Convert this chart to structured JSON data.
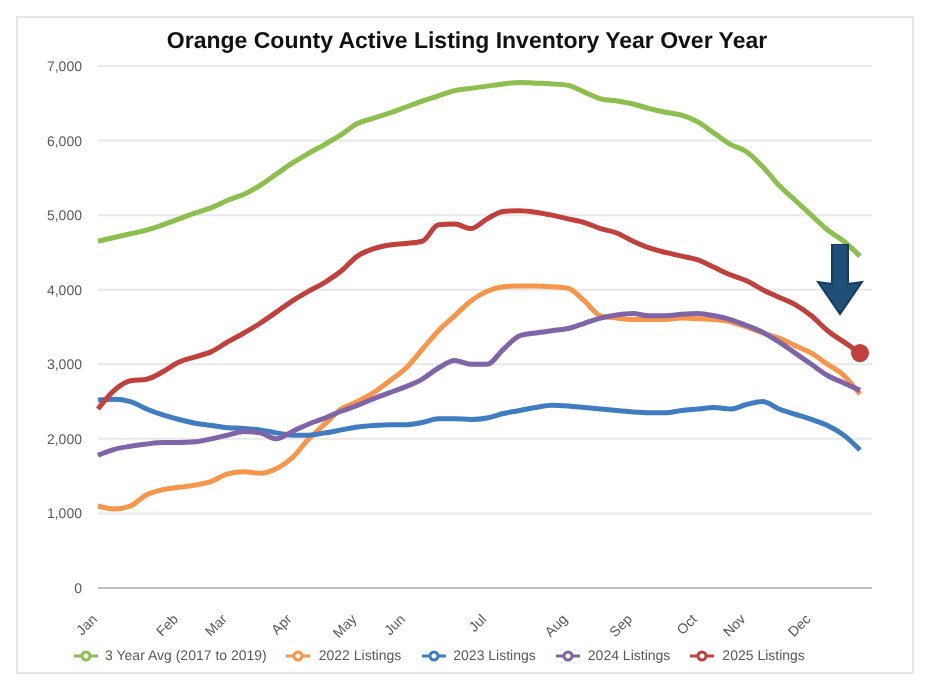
{
  "chart_data": {
    "type": "line",
    "title": "Orange County Active Listing Inventory Year Over Year",
    "categories": [
      "Jan",
      null,
      null,
      null,
      null,
      "Feb",
      null,
      null,
      "Mar",
      null,
      null,
      null,
      "Apr",
      null,
      null,
      null,
      "May",
      null,
      null,
      "Jun",
      null,
      null,
      null,
      null,
      "Jul",
      null,
      null,
      null,
      null,
      "Aug",
      null,
      null,
      null,
      "Sep",
      null,
      null,
      null,
      "Oct",
      null,
      null,
      "Nov",
      null,
      null,
      null,
      "Dec",
      null,
      null,
      null
    ],
    "series": [
      {
        "name": "3 Year Avg (2017 to 2019)",
        "color": "#8cbf4d",
        "values": [
          4650,
          4700,
          4750,
          4800,
          4870,
          4950,
          5030,
          5100,
          5200,
          5280,
          5400,
          5550,
          5700,
          5830,
          5950,
          6080,
          6230,
          6300,
          6370,
          6450,
          6530,
          6600,
          6670,
          6700,
          6730,
          6760,
          6780,
          6770,
          6760,
          6740,
          6650,
          6560,
          6530,
          6490,
          6430,
          6380,
          6340,
          6250,
          6100,
          5950,
          5850,
          5650,
          5400,
          5200,
          5000,
          4800,
          4650,
          4450
        ]
      },
      {
        "name": "2022 Listings",
        "color": "#f7964a",
        "values": [
          1100,
          1060,
          1100,
          1250,
          1320,
          1350,
          1380,
          1430,
          1530,
          1560,
          1540,
          1600,
          1750,
          2000,
          2200,
          2400,
          2500,
          2620,
          2780,
          2950,
          3200,
          3450,
          3650,
          3850,
          3980,
          4040,
          4050,
          4050,
          4040,
          4020,
          3850,
          3650,
          3620,
          3600,
          3600,
          3600,
          3620,
          3610,
          3600,
          3570,
          3500,
          3420,
          3350,
          3250,
          3150,
          3000,
          2850,
          2600
        ]
      },
      {
        "name": "2023 Listings",
        "color": "#3f7cc0",
        "values": [
          2520,
          2530,
          2500,
          2400,
          2320,
          2260,
          2210,
          2180,
          2150,
          2140,
          2120,
          2080,
          2050,
          2050,
          2080,
          2120,
          2160,
          2180,
          2190,
          2190,
          2220,
          2270,
          2270,
          2260,
          2280,
          2340,
          2380,
          2420,
          2450,
          2440,
          2420,
          2400,
          2380,
          2360,
          2350,
          2350,
          2380,
          2400,
          2420,
          2400,
          2460,
          2500,
          2400,
          2330,
          2260,
          2180,
          2050,
          1850
        ]
      },
      {
        "name": "2024 Listings",
        "color": "#8064a8",
        "values": [
          1780,
          1860,
          1900,
          1930,
          1950,
          1950,
          1960,
          2000,
          2050,
          2100,
          2080,
          2000,
          2100,
          2200,
          2280,
          2370,
          2450,
          2540,
          2620,
          2700,
          2800,
          2950,
          3050,
          3000,
          3000,
          3200,
          3380,
          3420,
          3450,
          3480,
          3550,
          3620,
          3660,
          3680,
          3650,
          3650,
          3670,
          3680,
          3650,
          3600,
          3520,
          3430,
          3300,
          3150,
          3000,
          2850,
          2750,
          2650
        ]
      },
      {
        "name": "2025 Listings",
        "color": "#c0403c",
        "values": [
          2400,
          2650,
          2780,
          2800,
          2900,
          3030,
          3100,
          3170,
          3300,
          3420,
          3550,
          3700,
          3850,
          3980,
          4100,
          4250,
          4450,
          4550,
          4600,
          4620,
          4650,
          4870,
          4880,
          4820,
          4950,
          5050,
          5060,
          5040,
          5000,
          4950,
          4900,
          4820,
          4760,
          4650,
          4560,
          4500,
          4450,
          4400,
          4300,
          4200,
          4120,
          4000,
          3900,
          3800,
          3650,
          3450,
          3300,
          3150
        ]
      },
      {
        "type": "scatter",
        "color": "#c0403c",
        "marker": "circle",
        "values": [
          null,
          null,
          null,
          null,
          null,
          null,
          null,
          null,
          null,
          null,
          null,
          null,
          null,
          null,
          null,
          null,
          null,
          null,
          null,
          null,
          null,
          null,
          null,
          null,
          null,
          null,
          null,
          null,
          null,
          null,
          null,
          null,
          null,
          null,
          null,
          null,
          null,
          null,
          null,
          null,
          null,
          null,
          null,
          null,
          null,
          null,
          null,
          3150
        ]
      }
    ],
    "ylim": [
      0,
      7000
    ],
    "yticks": [
      0,
      {
        "value": 1000,
        "label": "1,000"
      },
      {
        "value": 2000,
        "label": "2,000"
      },
      {
        "value": 3000,
        "label": "3,000"
      },
      {
        "value": 4000,
        "label": "4,000"
      },
      {
        "value": 5000,
        "label": "5,000"
      },
      {
        "value": 6000,
        "label": "6,000"
      },
      {
        "value": 7000,
        "label": "7,000"
      }
    ],
    "grid": "y",
    "legend": "bottom",
    "marker": "none",
    "line_style": "solid"
  }
}
